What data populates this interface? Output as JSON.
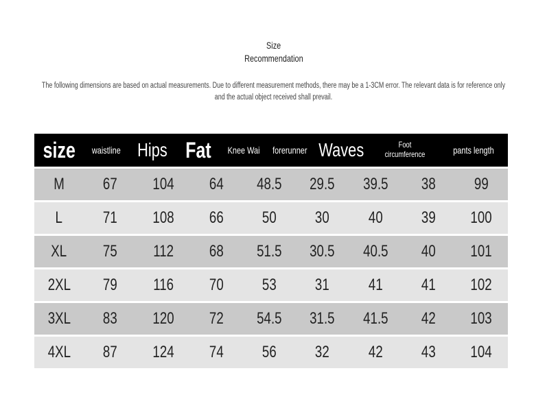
{
  "title_line1": "Size",
  "title_line2": "Recommendation",
  "note": "The following dimensions are based on actual measurements. Due to different measurement methods, there may be a 1-3CM error. The relevant data is for reference only and the actual object received shall prevail.",
  "table": {
    "headers": [
      "size",
      "waistline",
      "Hips",
      "Fat",
      "Knee Wai",
      "forerunner",
      "Waves",
      "Foot circumference",
      "pants length"
    ],
    "rows": [
      [
        "M",
        "67",
        "104",
        "64",
        "48.5",
        "29.5",
        "39.5",
        "38",
        "99"
      ],
      [
        "L",
        "71",
        "108",
        "66",
        "50",
        "30",
        "40",
        "39",
        "100"
      ],
      [
        "XL",
        "75",
        "112",
        "68",
        "51.5",
        "30.5",
        "40.5",
        "40",
        "101"
      ],
      [
        "2XL",
        "79",
        "116",
        "70",
        "53",
        "31",
        "41",
        "41",
        "102"
      ],
      [
        "3XL",
        "83",
        "120",
        "72",
        "54.5",
        "31.5",
        "41.5",
        "42",
        "103"
      ],
      [
        "4XL",
        "87",
        "124",
        "74",
        "56",
        "32",
        "42",
        "43",
        "104"
      ]
    ]
  },
  "colors": {
    "header_bg": "#000000",
    "row_dark": "#c9c9c9",
    "row_light": "#e4e4e4"
  }
}
